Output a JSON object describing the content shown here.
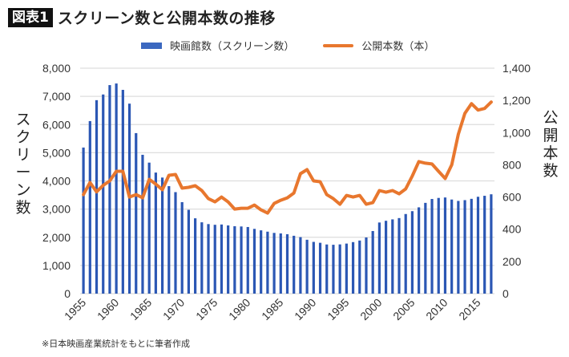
{
  "header": {
    "badge": "図表1",
    "title": "スクリーン数と公開本数の推移"
  },
  "legend": {
    "bars": "映画館数（スクリーン数）",
    "line": "公開本数（本）"
  },
  "axes": {
    "left_label": "スクリーン数",
    "right_label": "公開本数"
  },
  "source_note": "※日本映画産業統計をもとに筆者作成",
  "colors": {
    "bar": "#2b57b4",
    "line": "#e8772e",
    "grid": "#dddddd"
  },
  "chart_data": {
    "type": "bar+line",
    "title": "スクリーン数と公開本数の推移",
    "xlabel": "",
    "ylabel": "スクリーン数",
    "y2label": "公開本数",
    "ylim": [
      0,
      8000
    ],
    "y2lim": [
      0,
      1400
    ],
    "yticks": [
      "0",
      "1,000",
      "2,000",
      "3,000",
      "4,000",
      "5,000",
      "6,000",
      "7,000",
      "8,000"
    ],
    "y2ticks": [
      "0",
      "200",
      "400",
      "600",
      "800",
      "1,000",
      "1,200",
      "1,400"
    ],
    "xticks": [
      "1955",
      "1960",
      "1965",
      "1970",
      "1975",
      "1980",
      "1985",
      "1990",
      "1995",
      "2000",
      "2005",
      "2010",
      "2015"
    ],
    "grid": true,
    "legend_position": "top",
    "x": [
      1955,
      1956,
      1957,
      1958,
      1959,
      1960,
      1961,
      1962,
      1963,
      1964,
      1965,
      1966,
      1967,
      1968,
      1969,
      1970,
      1971,
      1972,
      1973,
      1974,
      1975,
      1976,
      1977,
      1978,
      1979,
      1980,
      1981,
      1982,
      1983,
      1984,
      1985,
      1986,
      1987,
      1988,
      1989,
      1990,
      1991,
      1992,
      1993,
      1994,
      1995,
      1996,
      1997,
      1998,
      1999,
      2000,
      2001,
      2002,
      2003,
      2004,
      2005,
      2006,
      2007,
      2008,
      2009,
      2010,
      2011,
      2012,
      2013,
      2014,
      2015,
      2016,
      2017
    ],
    "series": [
      {
        "name": "映画館数（スクリーン数）",
        "type": "bar",
        "axis": "left",
        "values": [
          5184,
          6123,
          6865,
          7067,
          7400,
          7457,
          7231,
          6742,
          5696,
          4927,
          4649,
          4296,
          4119,
          3814,
          3602,
          3246,
          2974,
          2673,
          2531,
          2468,
          2443,
          2453,
          2420,
          2392,
          2383,
          2364,
          2298,
          2246,
          2199,
          2155,
          2137,
          2109,
          2053,
          2005,
          1912,
          1836,
          1804,
          1744,
          1734,
          1747,
          1776,
          1828,
          1884,
          1993,
          2221,
          2524,
          2585,
          2635,
          2681,
          2825,
          2926,
          3062,
          3221,
          3359,
          3396,
          3412,
          3339,
          3290,
          3318,
          3364,
          3437,
          3472,
          3525
        ]
      },
      {
        "name": "公開本数（本）",
        "type": "line",
        "axis": "right",
        "values": [
          615,
          690,
          632,
          672,
          700,
          760,
          760,
          600,
          615,
          595,
          710,
          680,
          645,
          735,
          740,
          655,
          660,
          670,
          640,
          590,
          570,
          600,
          570,
          525,
          530,
          530,
          550,
          520,
          500,
          560,
          580,
          595,
          625,
          745,
          770,
          700,
          695,
          615,
          590,
          555,
          610,
          600,
          610,
          555,
          565,
          640,
          630,
          640,
          620,
          650,
          730,
          820,
          810,
          805,
          760,
          715,
          800,
          990,
          1120,
          1180,
          1140,
          1150,
          1190
        ]
      }
    ]
  }
}
